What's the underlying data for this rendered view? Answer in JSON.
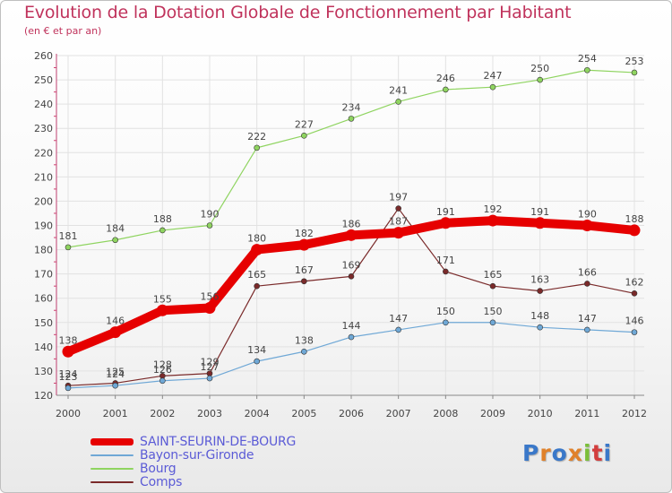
{
  "chart_data": {
    "type": "line",
    "title": "Evolution de la Dotation Globale de Fonctionnement par Habitant",
    "subtitle": "(en € et par an)",
    "categories": [
      "2000",
      "2001",
      "2002",
      "2003",
      "2004",
      "2005",
      "2006",
      "2007",
      "2008",
      "2009",
      "2010",
      "2011",
      "2012"
    ],
    "ylim": [
      120,
      260
    ],
    "yticks": [
      120,
      130,
      140,
      150,
      160,
      170,
      180,
      190,
      200,
      210,
      220,
      230,
      240,
      250,
      260
    ],
    "grid": true,
    "legend_position": "bottom-left",
    "series": [
      {
        "name": "SAINT-SEURIN-DE-BOURG",
        "color": "#e60000",
        "values": [
          138,
          146,
          155,
          156,
          180,
          182,
          186,
          187,
          191,
          192,
          191,
          190,
          188
        ]
      },
      {
        "name": "Bayon-sur-Gironde",
        "color": "#6fa8d6",
        "values": [
          123,
          124,
          126,
          127,
          134,
          138,
          144,
          147,
          150,
          150,
          148,
          147,
          146
        ]
      },
      {
        "name": "Bourg",
        "color": "#8fd460",
        "values": [
          181,
          184,
          188,
          190,
          222,
          227,
          234,
          241,
          246,
          247,
          250,
          254,
          253
        ]
      },
      {
        "name": "Comps",
        "color": "#7a2a2a",
        "values": [
          124,
          125,
          128,
          129,
          165,
          167,
          169,
          197,
          171,
          165,
          163,
          166,
          162
        ]
      }
    ]
  },
  "logo": {
    "text": "Proxiti",
    "colors": [
      "#3a78c9",
      "#e0812a",
      "#3a78c9",
      "#e0812a",
      "#7bbf3a",
      "#d33d3d",
      "#3a78c9"
    ]
  }
}
